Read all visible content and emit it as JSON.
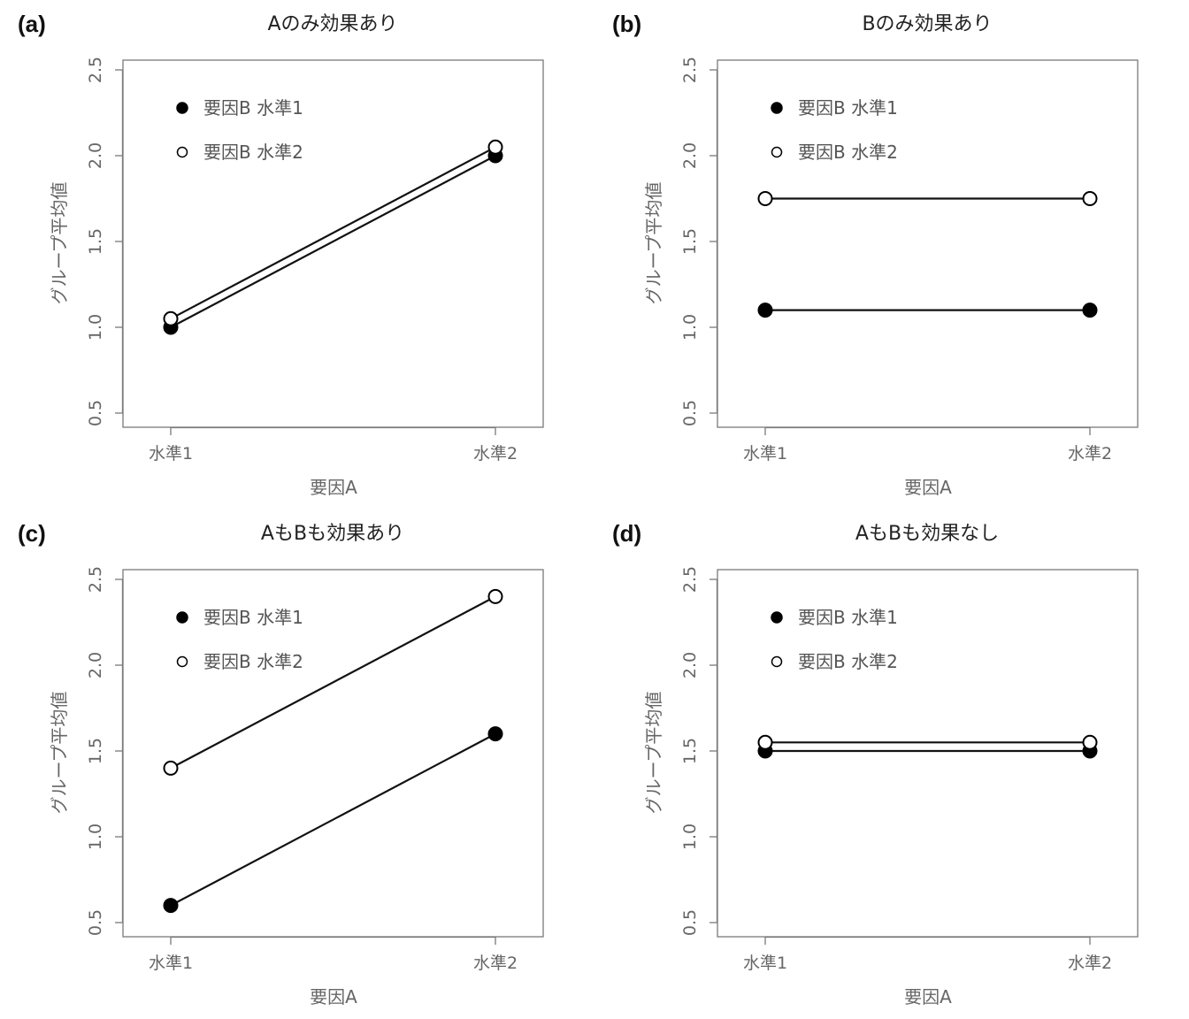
{
  "chart_data": [
    {
      "type": "line",
      "panel": "(a)",
      "title": "Aのみ効果あり",
      "xlabel": "要因A",
      "ylabel": "グループ平均値",
      "categories": [
        "水準1",
        "水準2"
      ],
      "yticks": [
        "0.5",
        "1.0",
        "1.5",
        "2.0",
        "2.5"
      ],
      "ylim": [
        0.5,
        2.5
      ],
      "grid": false,
      "legend_position": "top-left",
      "series": [
        {
          "name": "要因B 水準1",
          "marker": "filled",
          "values": [
            1.0,
            2.0
          ]
        },
        {
          "name": "要因B 水準2",
          "marker": "open",
          "values": [
            1.05,
            2.05
          ]
        }
      ]
    },
    {
      "type": "line",
      "panel": "(b)",
      "title": "Bのみ効果あり",
      "xlabel": "要因A",
      "ylabel": "グループ平均値",
      "categories": [
        "水準1",
        "水準2"
      ],
      "yticks": [
        "0.5",
        "1.0",
        "1.5",
        "2.0",
        "2.5"
      ],
      "ylim": [
        0.5,
        2.5
      ],
      "grid": false,
      "legend_position": "top-left",
      "series": [
        {
          "name": "要因B 水準1",
          "marker": "filled",
          "values": [
            1.1,
            1.1
          ]
        },
        {
          "name": "要因B 水準2",
          "marker": "open",
          "values": [
            1.75,
            1.75
          ]
        }
      ]
    },
    {
      "type": "line",
      "panel": "(c)",
      "title": "AもBも効果あり",
      "xlabel": "要因A",
      "ylabel": "グループ平均値",
      "categories": [
        "水準1",
        "水準2"
      ],
      "yticks": [
        "0.5",
        "1.0",
        "1.5",
        "2.0",
        "2.5"
      ],
      "ylim": [
        0.5,
        2.5
      ],
      "grid": false,
      "legend_position": "top-left",
      "series": [
        {
          "name": "要因B 水準1",
          "marker": "filled",
          "values": [
            0.6,
            1.6
          ]
        },
        {
          "name": "要因B 水準2",
          "marker": "open",
          "values": [
            1.4,
            2.4
          ]
        }
      ]
    },
    {
      "type": "line",
      "panel": "(d)",
      "title": "AもBも効果なし",
      "xlabel": "要因A",
      "ylabel": "グループ平均値",
      "categories": [
        "水準1",
        "水準2"
      ],
      "yticks": [
        "0.5",
        "1.0",
        "1.5",
        "2.0",
        "2.5"
      ],
      "ylim": [
        0.5,
        2.5
      ],
      "grid": false,
      "legend_position": "top-left",
      "series": [
        {
          "name": "要因B 水準1",
          "marker": "filled",
          "values": [
            1.5,
            1.5
          ]
        },
        {
          "name": "要因B 水準2",
          "marker": "open",
          "values": [
            1.55,
            1.55
          ]
        }
      ]
    }
  ]
}
